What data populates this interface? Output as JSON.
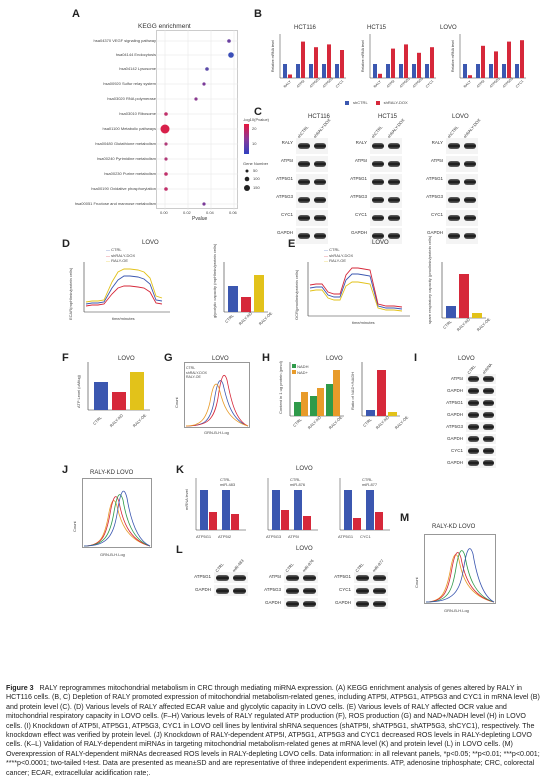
{
  "labels": {
    "A": "A",
    "B": "B",
    "C": "C",
    "D": "D",
    "E": "E",
    "F": "F",
    "G": "G",
    "H": "H",
    "I": "I",
    "J": "J",
    "K": "K",
    "L": "L",
    "M": "M"
  },
  "panelA": {
    "title": "KEGG enrichment",
    "xlabel": "Pvalue",
    "ticks": [
      "0.00",
      "0.02",
      "0.04",
      "0.06"
    ],
    "terms": [
      "hsa04370 VEGF signaling pathway",
      "hsa04144 Endocytosis",
      "hsa04142 Lysosome",
      "hsa00920 Sulfur relay system",
      "hsa03020 RNA polymerase",
      "hsa03010 Ribosome",
      "hsa01100 Metabolic pathways",
      "hsa00480 Glutathione metabolism",
      "hsa00240 Pyrimidine metabolism",
      "hsa00230 Purine metabolism",
      "hsa00190 Oxidative phosphorylation",
      "hsa00051 Fructose and mannose metabolism"
    ],
    "legend_color_title": "-log10(Pvalue)",
    "legend_color_ticks": [
      "20",
      "10"
    ],
    "legend_size_title": "Gene Number",
    "legend_size_ticks": [
      "50",
      "100",
      "150"
    ]
  },
  "panelB": {
    "titles": [
      "HCT116",
      "HCT15",
      "LOVO"
    ],
    "ylabel": "Relative mRNA level",
    "genes": [
      "RALY",
      "ATP5I",
      "ATP5G1",
      "ATP5G3",
      "CYC1"
    ],
    "legend": [
      "shCTRL",
      "shRALY-DOX"
    ]
  },
  "panelC": {
    "titles": [
      "HCT116",
      "HCT15",
      "LOVO"
    ],
    "cols": [
      "shCTRL",
      "shRALY-DOX"
    ],
    "rows": [
      "RALY",
      "ATP5I",
      "ATP5G1",
      "ATP5G3",
      "CYC1",
      "GAPDH"
    ]
  },
  "panelD": {
    "title": "LOVO",
    "legend": [
      "CTRL",
      "shRALY-DOX",
      "RALY-OE"
    ],
    "ylabel": "ECAR(mpH/min/protein cells)",
    "xlabel": "time/minutes",
    "bar_ylabel": "glycolytic capacity (mpH/min/protein cells)",
    "bar_cats": [
      "CTRL",
      "RALY-KD",
      "RALY-OE"
    ]
  },
  "panelE": {
    "title": "LOVO",
    "legend": [
      "CTRL",
      "shRALY-DOX",
      "RALY-OE"
    ],
    "ylabel": "OCR(pmol/min/protein cells)",
    "xlabel": "time/minutes",
    "bar_ylabel": "spare respiratory capacity (pmol/min/protein cells)",
    "bar_cats": [
      "CTRL",
      "RALY-KD",
      "RALY-OE"
    ]
  },
  "panelF": {
    "title": "LOVO",
    "ylabel": "ATP Level (uM/ug)",
    "cats": [
      "CTRL",
      "RALY-KD",
      "RALY-OE"
    ]
  },
  "panelG": {
    "title": "LOVO",
    "ylabel": "Count",
    "xlabel": "GRN-B-H.Log",
    "legend": [
      "CTRL",
      "shRALY-DOX",
      "RALY-OE"
    ]
  },
  "panelH": {
    "title": "LOVO",
    "ylabel": "Content in 1 ug protein (pmol)",
    "ylabel2": "Ratio of NAD+/NADH",
    "legend": [
      "NADH",
      "NAD+"
    ],
    "cats": [
      "CTRL",
      "RALY-KD",
      "RALY-OE"
    ]
  },
  "panelI": {
    "title": "LOVO",
    "cols": [
      "CTRL",
      "shRNA"
    ],
    "rows": [
      "ATP5I",
      "GAPDH",
      "ATP5G1",
      "GAPDH",
      "ATP5G3",
      "GAPDH",
      "CYC1",
      "GAPDH"
    ]
  },
  "panelJ": {
    "title": "RALY-KD LOVO",
    "ylabel": "Count",
    "xlabel": "GRN-B-H.Log"
  },
  "panelK": {
    "title": "LOVO",
    "ylabel": "mRNA level",
    "legends": [
      [
        "CTRL",
        "miR-483"
      ],
      [
        "CTRL",
        "miR-876"
      ],
      [
        "CTRL",
        "miR-877"
      ]
    ],
    "genes": [
      [
        "ATP5G1",
        "ATP5I2"
      ],
      [
        "ATP5G3",
        "ATP5I"
      ],
      [
        "ATP5G1",
        "CYC1"
      ]
    ]
  },
  "panelL": {
    "title": "LOVO",
    "blots": [
      {
        "cols": [
          "CTRL",
          "miR-483"
        ],
        "rows": [
          "ATP5G1",
          "GAPDH"
        ]
      },
      {
        "cols": [
          "CTRL",
          "miR-876"
        ],
        "rows": [
          "ATP5I",
          "ATP5G3",
          "GAPDH"
        ]
      },
      {
        "cols": [
          "CTRL",
          "miR-877"
        ],
        "rows": [
          "ATP5G1",
          "CYC1",
          "GAPDH"
        ]
      }
    ]
  },
  "panelM": {
    "title": "RALY-KD LOVO",
    "xlabel": "GRN-B-H.Log",
    "ylabel": "Count"
  },
  "caption": {
    "lead": "Figure 3",
    "text": "RALY reprogrammes mitochondrial metabolism in CRC through mediating miRNA expression. (A) KEGG enrichment analysis of genes altered by RALY in HCT116 cells. (B, C) Depletion of RALY promoted expression of mitochondrial metabolism-related genes, including ATP5I, ATP5G1, ATP5G3 and CYC1 in mRNA level (B) and protein level (C). (D) Various levels of RALY affected ECAR value and glycolytic capacity in LOVO cells. (E) Various levels of RALY affected OCR value and mitochondrial respiratory capacity in LOVO cells. (F–H) Various levels of RALY regulated ATP production (F), ROS production (G) and NAD+/NADH level (H) in LOVO cells. (I) Knockdown of ATP5I, ATP5G1, ATP5G3, CYC1 in LOVO cell lines by lentiviral shRNA sequences (shATP5I, shATP5G1, shATP5G3, shCYC1), respectively. The knockdown effect was verified by protein level. (J) Knockdown of RALY-dependent ATP5I, ATP5G1, ATP5G3 and CYC1 decreased ROS levels in RALY-depleting LOVO cells. (K–L) Validation of RALY-dependent miRNAs in targeting mitochondrial metabolism-related genes at mRNA level (K) and protein level (L) in LOVO cells. (M) Overexpression of RALY-dependent miRNAs decreased ROS levels in RALY-depleting LOVO cells. Data information: in all relevant panels, *p<0.05; **p<0.01; ***p<0.001; ****p<0.0001; two-tailed t-test. Data are presented as mean±SD and are representative of three independent experiments. ATP, adenosine triphosphate; CRC, colorectal cancer; ECAR, extracellular acidification rate;."
  }
}
